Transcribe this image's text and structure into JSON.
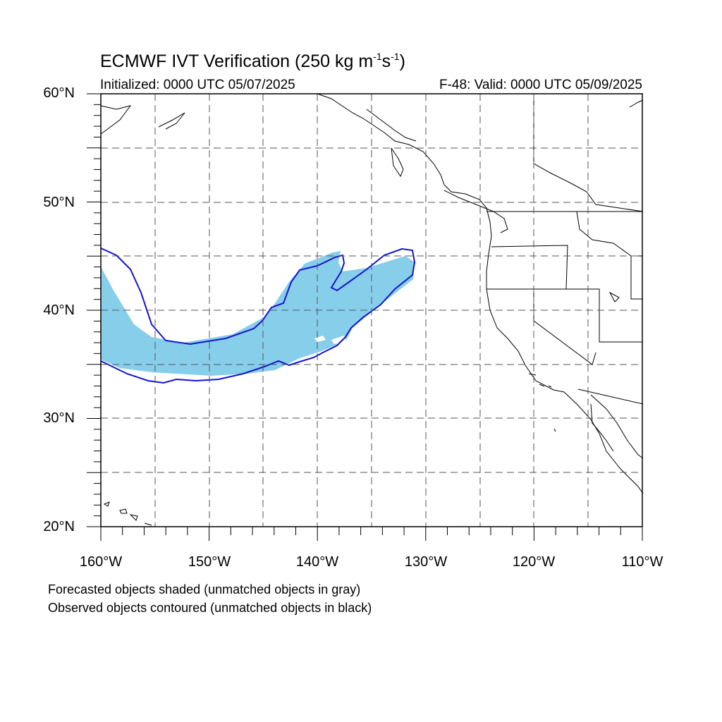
{
  "title": {
    "main": "ECMWF IVT Verification (250 kg m",
    "exp1": "-1",
    "mid": "s",
    "exp2": "-1",
    "end": ")"
  },
  "initialized": "Initialized: 0000 UTC 05/07/2025",
  "valid": "F-48: Valid: 0000 UTC 05/09/2025",
  "lat_labels": [
    "60°N",
    "50°N",
    "40°N",
    "30°N",
    "20°N"
  ],
  "lon_labels": [
    "160°W",
    "150°W",
    "140°W",
    "130°W",
    "120°W",
    "110°W"
  ],
  "notes": [
    "Forecasted objects shaded (unmatched objects in gray)",
    "Observed objects contoured (unmatched objects in black)"
  ],
  "colors": {
    "forecast_fill": "#87ceeb",
    "observed_contour": "#1414d2",
    "coastline": "#000000",
    "grid": "#555555"
  },
  "map_extent": {
    "lon_min": -160,
    "lon_max": -110,
    "lat_min": 20,
    "lat_max": 60
  }
}
